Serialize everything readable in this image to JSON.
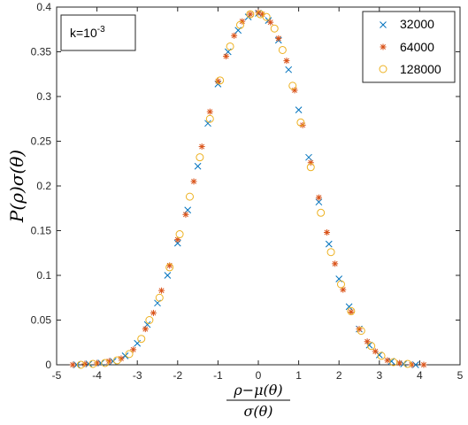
{
  "chart_data": {
    "type": "scatter",
    "title": "",
    "xlabel": {
      "numerator": "ρ−μ(θ)",
      "denominator": "σ(θ)"
    },
    "ylabel": "P(ρ)σ(θ)",
    "xlim": [
      -5,
      5
    ],
    "ylim": [
      0,
      0.4
    ],
    "xticks": [
      "-5",
      "-4",
      "-3",
      "-2",
      "-1",
      "0",
      "1",
      "2",
      "3",
      "4",
      "5"
    ],
    "yticks": [
      "0",
      "0.05",
      "0.1",
      "0.15",
      "0.2",
      "0.25",
      "0.3",
      "0.35",
      "0.4"
    ],
    "grid": false,
    "legend_position": "top-right",
    "annotation": {
      "base": "k=10",
      "exponent": "-3"
    },
    "series": [
      {
        "name": "32000",
        "marker": "x",
        "color": "#0072BD",
        "x": [
          -4.5,
          -4.2,
          -3.9,
          -3.6,
          -3.3,
          -3.0,
          -2.75,
          -2.5,
          -2.25,
          -2.0,
          -1.75,
          -1.5,
          -1.25,
          -1.0,
          -0.75,
          -0.5,
          -0.25,
          0.0,
          0.25,
          0.5,
          0.75,
          1.0,
          1.25,
          1.5,
          1.75,
          2.0,
          2.25,
          2.5,
          2.75,
          3.0,
          3.3,
          3.6,
          3.9
        ],
        "y": [
          0.0,
          0.001,
          0.002,
          0.004,
          0.01,
          0.024,
          0.045,
          0.069,
          0.1,
          0.136,
          0.173,
          0.222,
          0.27,
          0.314,
          0.35,
          0.374,
          0.389,
          0.393,
          0.385,
          0.363,
          0.33,
          0.285,
          0.232,
          0.182,
          0.135,
          0.096,
          0.065,
          0.04,
          0.022,
          0.011,
          0.004,
          0.001,
          0.0
        ]
      },
      {
        "name": "64000",
        "marker": "*",
        "color": "#D95319",
        "x": [
          -4.6,
          -4.3,
          -4.0,
          -3.7,
          -3.4,
          -3.1,
          -2.8,
          -2.6,
          -2.4,
          -2.2,
          -2.0,
          -1.8,
          -1.6,
          -1.4,
          -1.2,
          -1.0,
          -0.8,
          -0.6,
          -0.4,
          -0.2,
          0.0,
          0.1,
          0.3,
          0.5,
          0.7,
          0.9,
          1.1,
          1.3,
          1.5,
          1.7,
          1.9,
          2.1,
          2.3,
          2.5,
          2.7,
          2.9,
          3.2,
          3.5,
          3.8,
          4.1
        ],
        "y": [
          0.0,
          0.001,
          0.002,
          0.004,
          0.007,
          0.017,
          0.04,
          0.058,
          0.083,
          0.111,
          0.14,
          0.168,
          0.205,
          0.244,
          0.283,
          0.317,
          0.345,
          0.368,
          0.384,
          0.392,
          0.394,
          0.392,
          0.383,
          0.365,
          0.34,
          0.307,
          0.268,
          0.226,
          0.187,
          0.148,
          0.113,
          0.084,
          0.059,
          0.04,
          0.026,
          0.015,
          0.005,
          0.002,
          0.0,
          0.0
        ]
      },
      {
        "name": "128000",
        "marker": "o",
        "color": "#EDB120",
        "x": [
          -4.4,
          -4.1,
          -3.8,
          -3.5,
          -3.2,
          -2.9,
          -2.7,
          -2.45,
          -2.2,
          -1.95,
          -1.7,
          -1.45,
          -1.2,
          -0.95,
          -0.7,
          -0.45,
          -0.2,
          0.05,
          0.2,
          0.4,
          0.6,
          0.85,
          1.05,
          1.3,
          1.55,
          1.8,
          2.05,
          2.3,
          2.55,
          2.8,
          3.05,
          3.35,
          3.7
        ],
        "y": [
          0.0,
          0.001,
          0.002,
          0.005,
          0.012,
          0.029,
          0.05,
          0.075,
          0.109,
          0.146,
          0.188,
          0.232,
          0.275,
          0.318,
          0.356,
          0.38,
          0.392,
          0.392,
          0.389,
          0.376,
          0.352,
          0.312,
          0.271,
          0.221,
          0.17,
          0.126,
          0.09,
          0.06,
          0.038,
          0.021,
          0.01,
          0.003,
          0.001
        ]
      }
    ]
  }
}
